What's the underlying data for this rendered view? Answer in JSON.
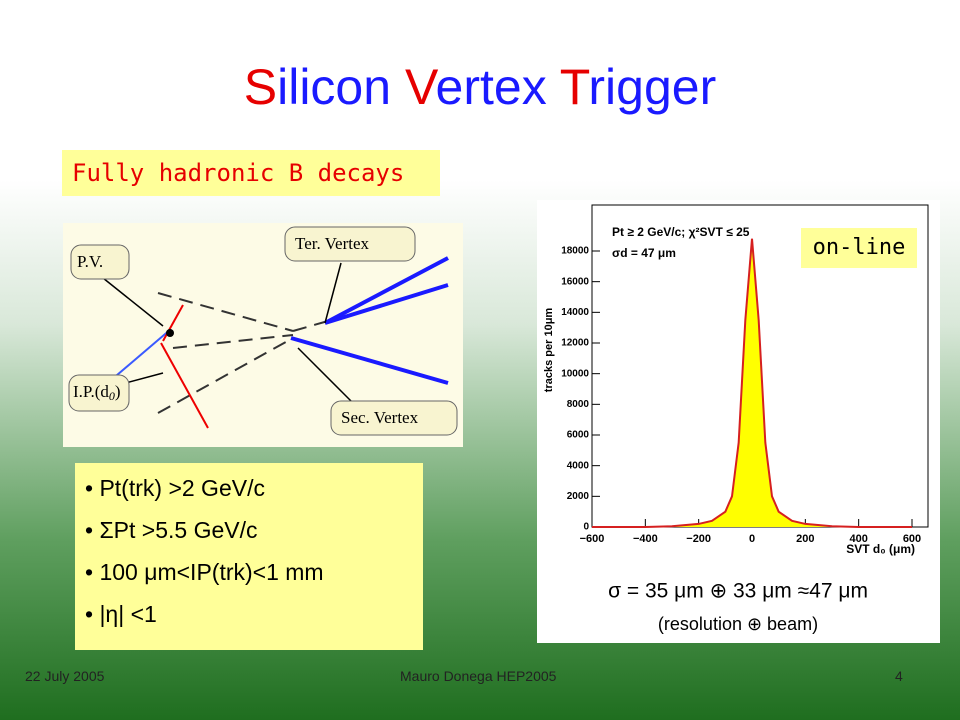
{
  "title": [
    "S",
    "ilicon ",
    "V",
    "ertex ",
    "T",
    "rigger"
  ],
  "subtitle_box": "Fully hadronic B decays",
  "diagram": {
    "labels": [
      "P.V.",
      "Ter. Vertex",
      "I.P.(d",
      "0",
      ")",
      "Sec. Vertex"
    ]
  },
  "bullets": [
    "Pt(trk) >2 GeV/c",
    "ΣPt >5.5 GeV/c",
    "100 μm<IP(trk)<1 mm",
    "|η| <1"
  ],
  "footer": {
    "date": "22 July 2005",
    "author": "Mauro Donega HEP2005",
    "page": "4"
  },
  "chart_data": {
    "type": "area",
    "ylabel": "tracks per 10μm",
    "xlabel": "SVT d₀ (μm)",
    "annotations": [
      "Pt ≥ 2 GeV/c; χ²SVT ≤ 25",
      "σd = 47 μm"
    ],
    "tag": "on-line",
    "caption": [
      "σ = 35 μm ⊕ 33 μm ≈47 μm",
      "(resolution ⊕ beam)"
    ],
    "x": [
      -600,
      -400,
      -300,
      -200,
      -150,
      -100,
      -75,
      -50,
      -25,
      0,
      25,
      50,
      75,
      100,
      150,
      200,
      300,
      400,
      600
    ],
    "values": [
      0,
      0,
      50,
      200,
      400,
      1000,
      2000,
      5500,
      13500,
      18800,
      13500,
      5500,
      2000,
      1000,
      400,
      200,
      50,
      0,
      0
    ],
    "color": "#d62020",
    "fill_color": "#ffff00",
    "xlim": [
      -600,
      600
    ],
    "ylim": [
      0,
      21000
    ],
    "xticks": [
      {
        "value": -600,
        "label": "−600"
      },
      {
        "value": -400,
        "label": "−400"
      },
      {
        "value": -200,
        "label": "−200"
      },
      0,
      200,
      400,
      600
    ],
    "yticks": [
      0,
      2000,
      4000,
      6000,
      8000,
      10000,
      12000,
      14000,
      16000,
      18000
    ]
  }
}
